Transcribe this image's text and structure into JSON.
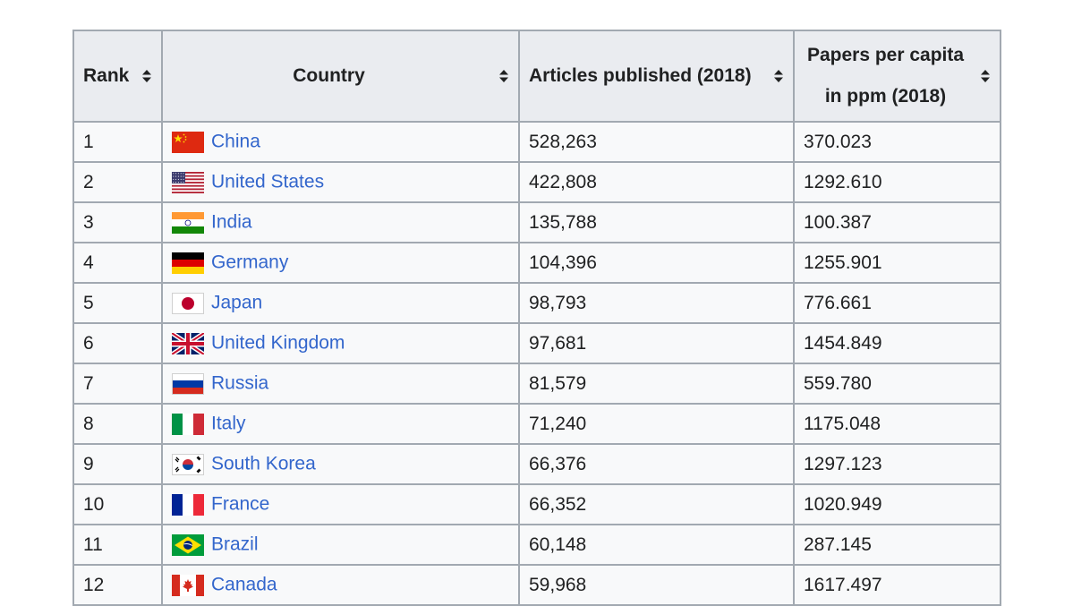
{
  "table": {
    "headers": [
      {
        "label": "Rank"
      },
      {
        "label": "Country"
      },
      {
        "label": "Articles published (2018)"
      },
      {
        "label": "Papers per capita in ppm (2018)"
      }
    ],
    "rows": [
      {
        "rank": "1",
        "country": "China",
        "flag": "china-flag-icon",
        "articles": "528,263",
        "ppm": "370.023"
      },
      {
        "rank": "2",
        "country": "United States",
        "flag": "united-states-flag-icon",
        "articles": "422,808",
        "ppm": "1292.610"
      },
      {
        "rank": "3",
        "country": "India",
        "flag": "india-flag-icon",
        "articles": "135,788",
        "ppm": "100.387"
      },
      {
        "rank": "4",
        "country": "Germany",
        "flag": "germany-flag-icon",
        "articles": "104,396",
        "ppm": "1255.901"
      },
      {
        "rank": "5",
        "country": "Japan",
        "flag": "japan-flag-icon",
        "articles": "98,793",
        "ppm": "776.661"
      },
      {
        "rank": "6",
        "country": "United Kingdom",
        "flag": "united-kingdom-flag-icon",
        "articles": "97,681",
        "ppm": "1454.849"
      },
      {
        "rank": "7",
        "country": "Russia",
        "flag": "russia-flag-icon",
        "articles": "81,579",
        "ppm": "559.780"
      },
      {
        "rank": "8",
        "country": "Italy",
        "flag": "italy-flag-icon",
        "articles": "71,240",
        "ppm": "1175.048"
      },
      {
        "rank": "9",
        "country": "South Korea",
        "flag": "south-korea-flag-icon",
        "articles": "66,376",
        "ppm": "1297.123"
      },
      {
        "rank": "10",
        "country": "France",
        "flag": "france-flag-icon",
        "articles": "66,352",
        "ppm": "1020.949"
      },
      {
        "rank": "11",
        "country": "Brazil",
        "flag": "brazil-flag-icon",
        "articles": "60,148",
        "ppm": "287.145"
      },
      {
        "rank": "12",
        "country": "Canada",
        "flag": "canada-flag-icon",
        "articles": "59,968",
        "ppm": "1617.497"
      }
    ]
  },
  "colors": {
    "link": "#3366cc",
    "header_bg": "#eaecf0",
    "cell_bg": "#f8f9fa",
    "border": "#a2a9b1",
    "text": "#202122"
  }
}
